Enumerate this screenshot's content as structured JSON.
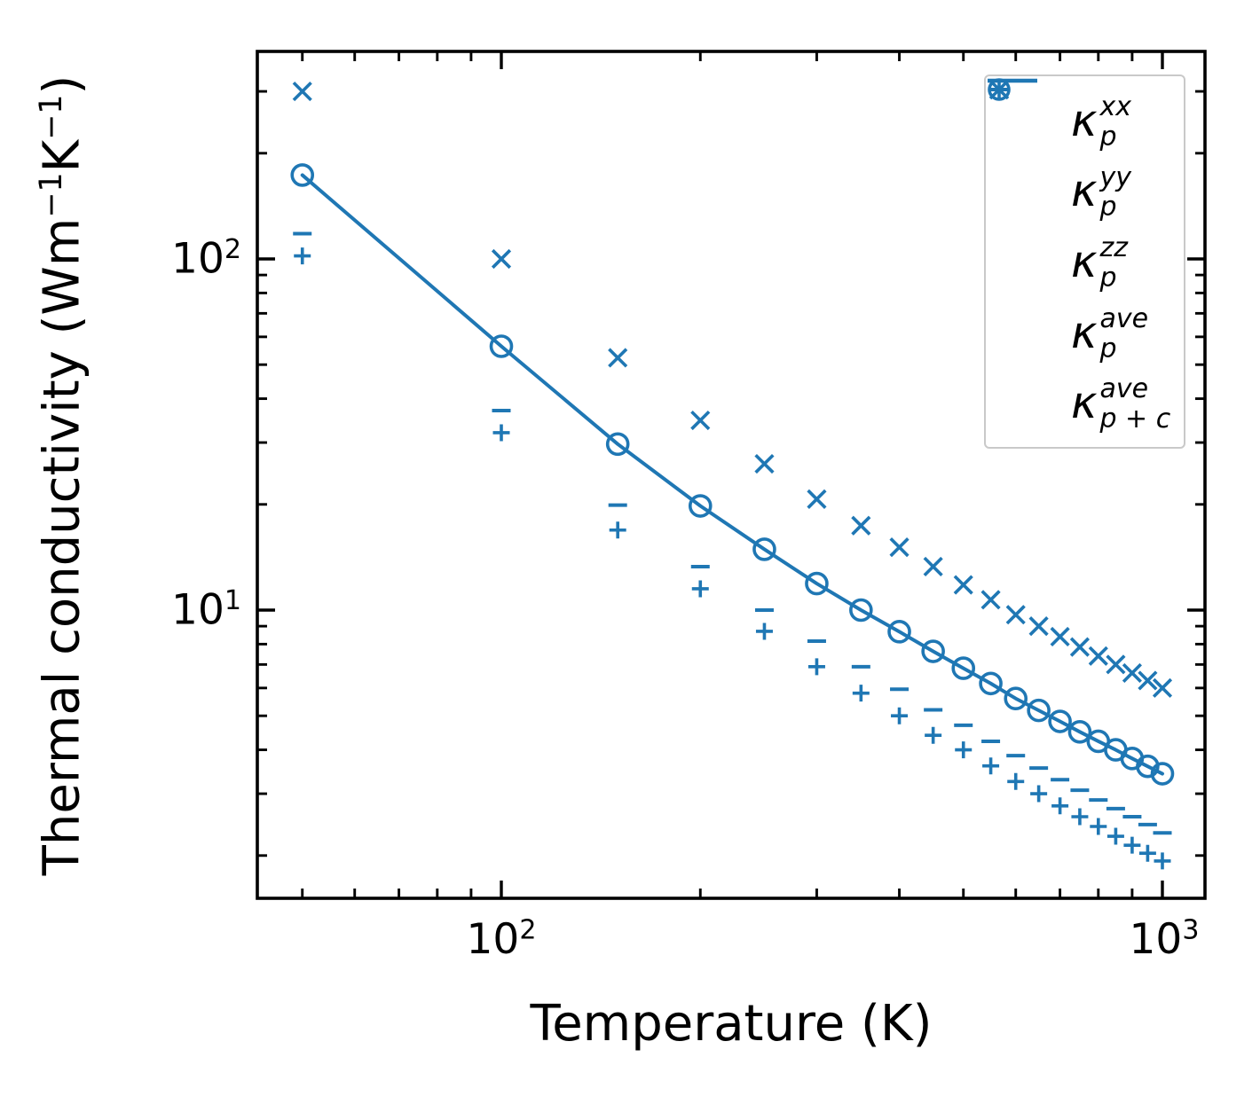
{
  "figure": {
    "background": "#ffffff",
    "accent_color": "#1f77b4",
    "axis_color": "#000000",
    "legend_border_color": "#c9c9c9"
  },
  "axes": {
    "xlabel": "Temperature (K)",
    "ylabel_parts": [
      "Thermal conductivity (Wm",
      "−1",
      "K",
      "−1",
      ")"
    ],
    "x_tick_labels": [
      {
        "base": "10",
        "exp": "2"
      },
      {
        "base": "10",
        "exp": "3"
      }
    ],
    "y_tick_labels": [
      {
        "base": "10",
        "exp": "2"
      },
      {
        "base": "10",
        "exp": "1"
      }
    ]
  },
  "legend": {
    "entries": [
      {
        "marker": "plus",
        "kappa": "κ",
        "sup": "xx",
        "sub": "p"
      },
      {
        "marker": "cross",
        "kappa": "κ",
        "sup": "yy",
        "sub": "p"
      },
      {
        "marker": "dash",
        "kappa": "κ",
        "sup": "zz",
        "sub": "p"
      },
      {
        "marker": "circle",
        "kappa": "κ",
        "sup": "ave",
        "sub": "p"
      },
      {
        "marker": "line",
        "kappa": "κ",
        "sup": "ave",
        "sub": "p + c"
      }
    ]
  },
  "chart_data": {
    "type": "scatter+line",
    "title": "",
    "xlabel": "Temperature (K)",
    "ylabel": "Thermal conductivity (Wm−1K−1)",
    "xscale": "log",
    "yscale": "log",
    "xlim": [
      42.7,
      1160
    ],
    "ylim": [
      1.51,
      390
    ],
    "x_major_ticks": [
      100,
      1000
    ],
    "x_minor_ticks": [
      50,
      60,
      70,
      80,
      90,
      200,
      300,
      400,
      500,
      600,
      700,
      800,
      900
    ],
    "y_major_ticks": [
      10,
      100
    ],
    "y_minor_ticks": [
      2,
      3,
      4,
      5,
      6,
      7,
      8,
      9,
      20,
      30,
      40,
      50,
      60,
      70,
      80,
      90,
      200,
      300
    ],
    "legend_position": "upper right",
    "color": "#1f77b4",
    "x": [
      50,
      100,
      150,
      200,
      250,
      300,
      350,
      400,
      450,
      500,
      550,
      600,
      650,
      700,
      750,
      800,
      850,
      900,
      950,
      1000
    ],
    "series": [
      {
        "name": "kappa_p_xx",
        "legend_label": "κ_p^xx",
        "marker": "plus",
        "values": [
          102,
          32.0,
          16.9,
          11.5,
          8.7,
          6.9,
          5.8,
          5.0,
          4.4,
          4.0,
          3.6,
          3.25,
          3.0,
          2.77,
          2.58,
          2.42,
          2.27,
          2.14,
          2.03,
          1.93
        ]
      },
      {
        "name": "kappa_p_yy",
        "legend_label": "κ_p^yy",
        "marker": "cross",
        "values": [
          300,
          100,
          52.3,
          34.7,
          26.1,
          20.7,
          17.4,
          15.1,
          13.3,
          11.8,
          10.7,
          9.7,
          9.0,
          8.4,
          7.85,
          7.4,
          7.0,
          6.62,
          6.3,
          6.0
        ]
      },
      {
        "name": "kappa_p_zz",
        "legend_label": "κ_p^zz",
        "marker": "dash",
        "values": [
          118,
          37.0,
          19.9,
          13.3,
          10.0,
          8.16,
          6.9,
          5.95,
          5.2,
          4.7,
          4.23,
          3.85,
          3.55,
          3.29,
          3.07,
          2.88,
          2.72,
          2.58,
          2.45,
          2.32
        ]
      },
      {
        "name": "kappa_p_ave",
        "legend_label": "κ_p^ave",
        "marker": "circle",
        "values": [
          173.3,
          56.4,
          29.7,
          19.8,
          14.9,
          11.9,
          10.0,
          8.68,
          7.63,
          6.83,
          6.18,
          5.6,
          5.18,
          4.82,
          4.5,
          4.23,
          4.0,
          3.78,
          3.59,
          3.42
        ]
      },
      {
        "name": "kappa_p_plus_c_ave",
        "legend_label": "κ_p+c^ave",
        "marker": "line",
        "values": [
          173.3,
          56.4,
          29.7,
          19.8,
          14.9,
          11.9,
          10.0,
          8.68,
          7.63,
          6.83,
          6.18,
          5.6,
          5.18,
          4.82,
          4.5,
          4.23,
          4.0,
          3.78,
          3.59,
          3.42
        ]
      }
    ]
  }
}
